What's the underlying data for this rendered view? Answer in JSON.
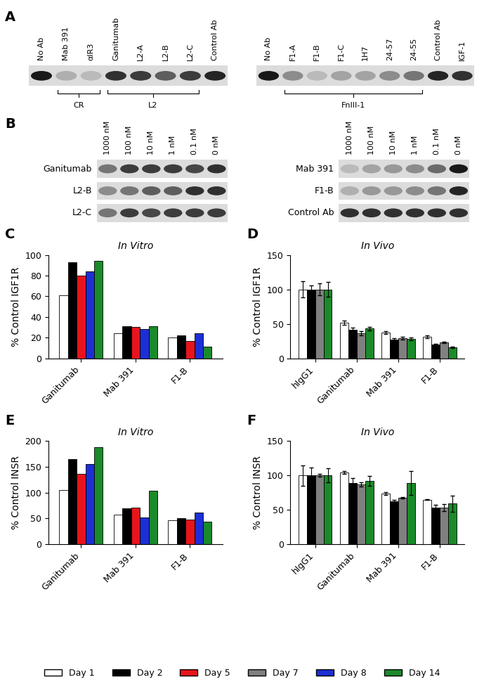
{
  "blots": [
    {
      "label": "A",
      "blocks": [
        {
          "lanes": [
            "No Ab",
            "Mab 391",
            "αIR3",
            "Ganitumab",
            "L2-A",
            "L2-B",
            "L2-C",
            "Control Ab"
          ],
          "band_intensity": [
            1.0,
            0.35,
            0.3,
            0.9,
            0.85,
            0.7,
            0.85,
            0.95
          ],
          "groups": [
            {
              "label": "CR",
              "start": 1,
              "end": 2
            },
            {
              "label": "L2",
              "start": 3,
              "end": 6
            }
          ]
        },
        {
          "lanes": [
            "No Ab",
            "F1-A",
            "F1-B",
            "F1-C",
            "1H7",
            "24-57",
            "24-55",
            "Control Ab",
            "IGF-1"
          ],
          "band_intensity": [
            1.0,
            0.5,
            0.3,
            0.4,
            0.4,
            0.5,
            0.6,
            0.95,
            0.9
          ],
          "groups": [
            {
              "label": "FnIII-1",
              "start": 1,
              "end": 6
            }
          ]
        }
      ]
    },
    {
      "label": "B",
      "blocks": [
        {
          "columns": [
            "1000 nM",
            "100 nM",
            "10 nM",
            "1 nM",
            "0.1 nM",
            "0 nM"
          ],
          "rows": [
            {
              "name": "Ganitumab",
              "band_intensity": [
                0.6,
                0.85,
                0.85,
                0.85,
                0.8,
                0.9
              ]
            },
            {
              "name": "L2-B",
              "band_intensity": [
                0.5,
                0.6,
                0.7,
                0.7,
                0.9,
                0.9
              ]
            },
            {
              "name": "L2-C",
              "band_intensity": [
                0.6,
                0.85,
                0.8,
                0.85,
                0.85,
                0.85
              ]
            }
          ]
        },
        {
          "columns": [
            "1000 nM",
            "100 nM",
            "10 nM",
            "1 nM",
            "0.1 nM",
            "0 nM"
          ],
          "rows": [
            {
              "name": "Mab 391",
              "band_intensity": [
                0.3,
                0.4,
                0.45,
                0.5,
                0.65,
                1.0
              ]
            },
            {
              "name": "F1-B",
              "band_intensity": [
                0.35,
                0.45,
                0.45,
                0.5,
                0.6,
                0.95
              ]
            },
            {
              "name": "Control Ab",
              "band_intensity": [
                0.9,
                0.9,
                0.9,
                0.9,
                0.9,
                0.9
              ]
            }
          ]
        }
      ]
    }
  ],
  "chart_data": [
    {
      "type": "bar",
      "label": "C",
      "title": "In Vitro",
      "y_label": "% Control IGF1R",
      "categories": [
        "Ganitumab",
        "Mab 391",
        "F1-B"
      ],
      "ylim": [
        0,
        100
      ],
      "yticks": [
        0,
        20,
        40,
        60,
        80,
        100
      ],
      "series": [
        {
          "name": "Day 1",
          "color": "#ffffff",
          "values": [
            61,
            24,
            20
          ]
        },
        {
          "name": "Day 2",
          "color": "#000000",
          "values": [
            93,
            31,
            22
          ]
        },
        {
          "name": "Day 5",
          "color": "#e8141b",
          "values": [
            80,
            30,
            17
          ]
        },
        {
          "name": "Day 8",
          "color": "#1c2fd6",
          "values": [
            84,
            28,
            24
          ]
        },
        {
          "name": "Day 14",
          "color": "#1b8a2a",
          "values": [
            94,
            31,
            11
          ]
        }
      ]
    },
    {
      "type": "bar",
      "label": "D",
      "title": "In Vivo",
      "y_label": "% Control IGF1R",
      "categories": [
        "hIgG1",
        "Ganitumab",
        "Mab 391",
        "F1-B"
      ],
      "ylim": [
        0,
        150
      ],
      "yticks": [
        0,
        50,
        100,
        150
      ],
      "series": [
        {
          "name": "Day 1",
          "color": "#ffffff",
          "values": [
            100,
            52,
            37,
            31
          ],
          "errors": [
            12,
            3,
            2,
            2
          ]
        },
        {
          "name": "Day 2",
          "color": "#000000",
          "values": [
            100,
            41,
            27,
            20
          ],
          "errors": [
            6,
            3,
            2,
            1
          ]
        },
        {
          "name": "Day 7",
          "color": "#808080",
          "values": [
            100,
            36,
            29,
            23
          ],
          "errors": [
            9,
            3,
            2,
            1
          ]
        },
        {
          "name": "Day 14",
          "color": "#1b8a2a",
          "values": [
            100,
            43,
            28,
            16
          ],
          "errors": [
            11,
            3,
            2,
            1
          ]
        }
      ]
    },
    {
      "type": "bar",
      "label": "E",
      "title": "In Vitro",
      "y_label": "% Control INSR",
      "categories": [
        "Ganitumab",
        "Mab 391",
        "F1-B"
      ],
      "ylim": [
        0,
        200
      ],
      "yticks": [
        0,
        50,
        100,
        150,
        200
      ],
      "series": [
        {
          "name": "Day 1",
          "color": "#ffffff",
          "values": [
            105,
            58,
            46
          ]
        },
        {
          "name": "Day 2",
          "color": "#000000",
          "values": [
            165,
            69,
            51
          ]
        },
        {
          "name": "Day 5",
          "color": "#e8141b",
          "values": [
            136,
            71,
            48
          ]
        },
        {
          "name": "Day 8",
          "color": "#1c2fd6",
          "values": [
            156,
            52,
            61
          ]
        },
        {
          "name": "Day 14",
          "color": "#1b8a2a",
          "values": [
            188,
            103,
            44
          ]
        }
      ]
    },
    {
      "type": "bar",
      "label": "F",
      "title": "In Vivo",
      "y_label": "% Control INSR",
      "categories": [
        "hIgG1",
        "Ganitumab",
        "Mab 391",
        "F1-B"
      ],
      "ylim": [
        0,
        150
      ],
      "yticks": [
        0,
        50,
        100,
        150
      ],
      "series": [
        {
          "name": "Day 1",
          "color": "#ffffff",
          "values": [
            100,
            104,
            74,
            65
          ],
          "errors": [
            15,
            2,
            2,
            1
          ]
        },
        {
          "name": "Day 2",
          "color": "#000000",
          "values": [
            100,
            89,
            62,
            53
          ],
          "errors": [
            11,
            7,
            2,
            4
          ]
        },
        {
          "name": "Day 7",
          "color": "#808080",
          "values": [
            100,
            87,
            68,
            53
          ],
          "errors": [
            2,
            3,
            1,
            5
          ]
        },
        {
          "name": "Day 14",
          "color": "#1b8a2a",
          "values": [
            100,
            92,
            89,
            59
          ],
          "errors": [
            10,
            7,
            17,
            12
          ]
        }
      ]
    }
  ],
  "legend": {
    "position": "lower center",
    "entries": [
      {
        "name": "Day 1",
        "color": "#ffffff"
      },
      {
        "name": "Day 2",
        "color": "#000000"
      },
      {
        "name": "Day 5",
        "color": "#e8141b"
      },
      {
        "name": "Day 7",
        "color": "#808080"
      },
      {
        "name": "Day 8",
        "color": "#1c2fd6"
      },
      {
        "name": "Day 14",
        "color": "#1b8a2a"
      }
    ]
  }
}
